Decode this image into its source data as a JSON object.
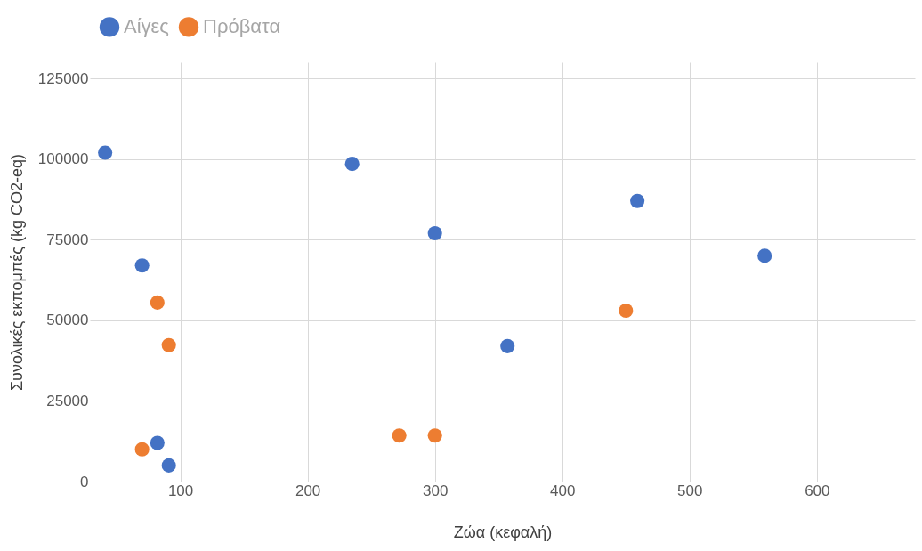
{
  "chart_data": {
    "type": "scatter",
    "xlabel": "Ζώα (κεφαλή)",
    "ylabel": "Συνολικές εκπομπές (kg CO2-eq)",
    "series": [
      {
        "name": "Αίγες",
        "color": "#4472c4",
        "x": [
          41,
          70,
          82,
          91,
          235,
          300,
          357,
          459,
          559
        ],
        "values": [
          102000,
          67000,
          12000,
          5000,
          98500,
          77000,
          42000,
          87000,
          70000
        ]
      },
      {
        "name": "Πρόβατα",
        "color": "#ed7d31",
        "x": [
          82,
          91,
          70,
          272,
          300,
          450
        ],
        "values": [
          55500,
          42300,
          10000,
          14300,
          14300,
          53000
        ]
      }
    ],
    "xlim": [
      29,
      677
    ],
    "xticks": [
      100,
      200,
      300,
      400,
      500,
      600
    ],
    "ylim": [
      0,
      130000
    ],
    "yticks": [
      0,
      25000,
      50000,
      75000,
      100000,
      125000
    ],
    "grid": true,
    "legend": "top",
    "marker": "circle"
  }
}
